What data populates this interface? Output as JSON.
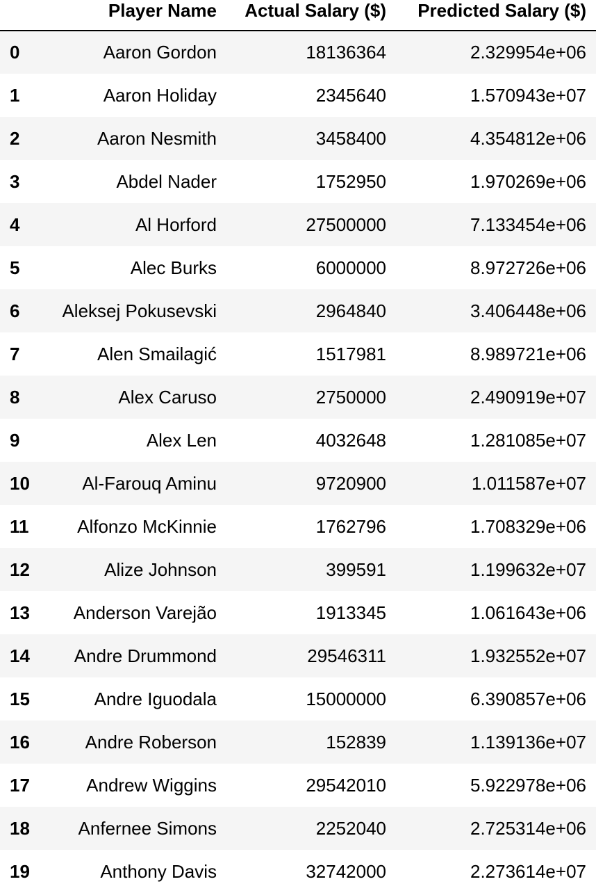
{
  "table": {
    "columns": [
      "Player Name",
      "Actual Salary ($)",
      "Predicted Salary ($)"
    ],
    "rows": [
      {
        "index": "0",
        "name": "Aaron Gordon",
        "actual": "18136364",
        "predicted": "2.329954e+06"
      },
      {
        "index": "1",
        "name": "Aaron Holiday",
        "actual": "2345640",
        "predicted": "1.570943e+07"
      },
      {
        "index": "2",
        "name": "Aaron Nesmith",
        "actual": "3458400",
        "predicted": "4.354812e+06"
      },
      {
        "index": "3",
        "name": "Abdel Nader",
        "actual": "1752950",
        "predicted": "1.970269e+06"
      },
      {
        "index": "4",
        "name": "Al Horford",
        "actual": "27500000",
        "predicted": "7.133454e+06"
      },
      {
        "index": "5",
        "name": "Alec Burks",
        "actual": "6000000",
        "predicted": "8.972726e+06"
      },
      {
        "index": "6",
        "name": "Aleksej Pokusevski",
        "actual": "2964840",
        "predicted": "3.406448e+06"
      },
      {
        "index": "7",
        "name": "Alen Smailagić",
        "actual": "1517981",
        "predicted": "8.989721e+06"
      },
      {
        "index": "8",
        "name": "Alex Caruso",
        "actual": "2750000",
        "predicted": "2.490919e+07"
      },
      {
        "index": "9",
        "name": "Alex Len",
        "actual": "4032648",
        "predicted": "1.281085e+07"
      },
      {
        "index": "10",
        "name": "Al-Farouq Aminu",
        "actual": "9720900",
        "predicted": "1.011587e+07"
      },
      {
        "index": "11",
        "name": "Alfonzo McKinnie",
        "actual": "1762796",
        "predicted": "1.708329e+06"
      },
      {
        "index": "12",
        "name": "Alize Johnson",
        "actual": "399591",
        "predicted": "1.199632e+07"
      },
      {
        "index": "13",
        "name": "Anderson Varejão",
        "actual": "1913345",
        "predicted": "1.061643e+06"
      },
      {
        "index": "14",
        "name": "Andre Drummond",
        "actual": "29546311",
        "predicted": "1.932552e+07"
      },
      {
        "index": "15",
        "name": "Andre Iguodala",
        "actual": "15000000",
        "predicted": "6.390857e+06"
      },
      {
        "index": "16",
        "name": "Andre Roberson",
        "actual": "152839",
        "predicted": "1.139136e+07"
      },
      {
        "index": "17",
        "name": "Andrew Wiggins",
        "actual": "29542010",
        "predicted": "5.922978e+06"
      },
      {
        "index": "18",
        "name": "Anfernee Simons",
        "actual": "2252040",
        "predicted": "2.725314e+06"
      },
      {
        "index": "19",
        "name": "Anthony Davis",
        "actual": "32742000",
        "predicted": "2.273614e+07"
      }
    ]
  }
}
